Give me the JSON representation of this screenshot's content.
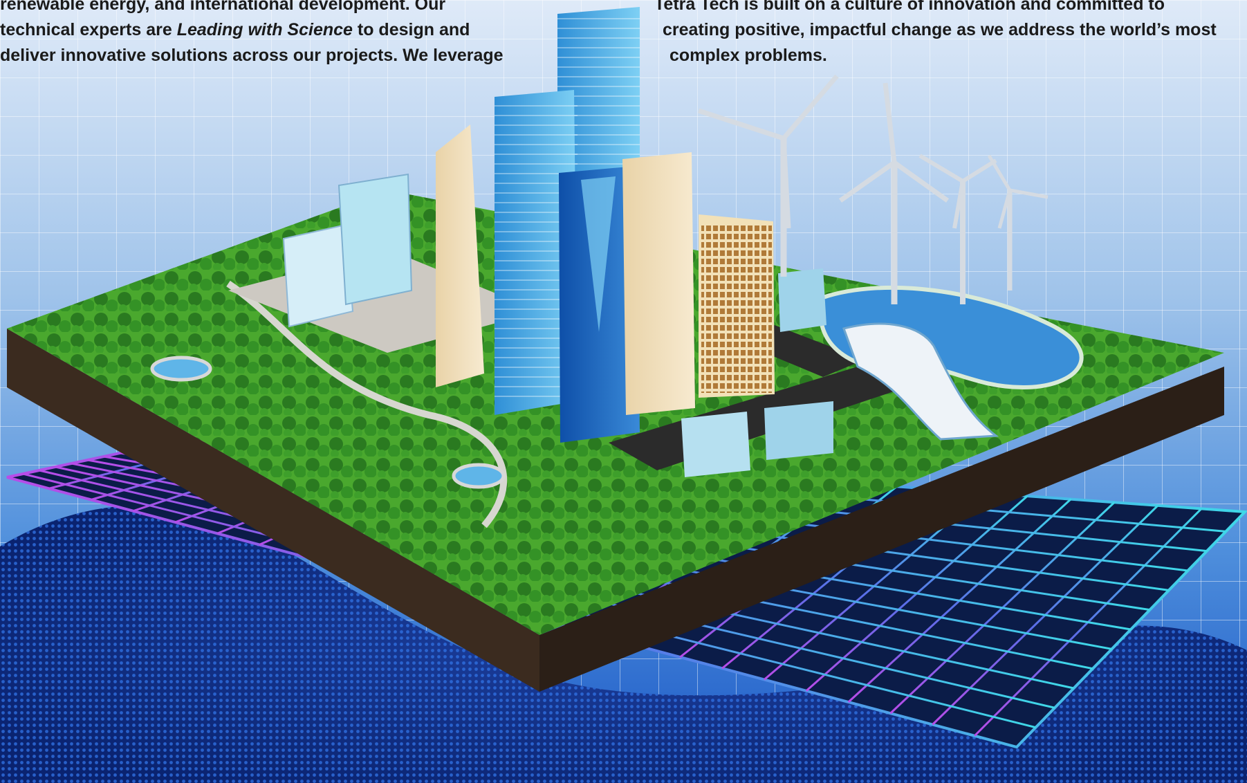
{
  "intro_text": {
    "line1": "renewable energy, and international development. Our",
    "line2_before": "technical experts are ",
    "line2_italic": "Leading with Science",
    "line2_after": " to design and",
    "line3": "deliver innovative solutions across our projects. We leverage"
  },
  "culture_text": {
    "line1": "Tetra Tech is built on a culture of innovation and committed to",
    "line2": "creating positive, impactful change as we address the world’s most",
    "line3": "complex problems."
  },
  "colors": {
    "background_top": "#dfeaf8",
    "background_bottom": "#1a57c6",
    "grass": "#4aa82e",
    "soil": "#3a2a1e",
    "water": "#3a8fd8",
    "grid_left": "#b84ce8",
    "grid_right": "#3fd8e8"
  }
}
